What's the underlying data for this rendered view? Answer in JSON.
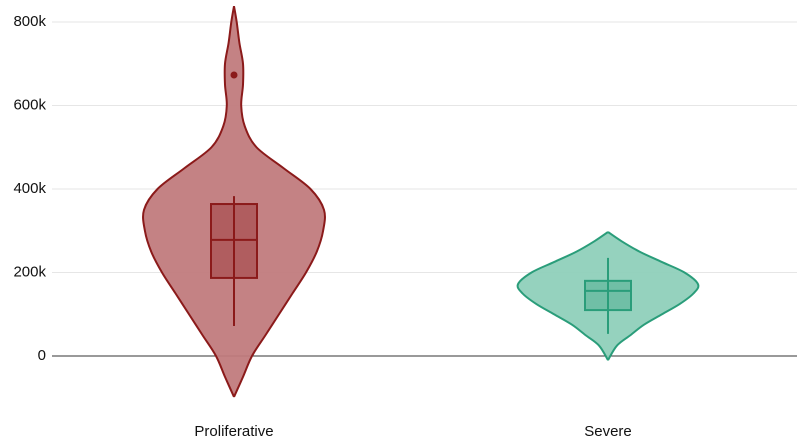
{
  "chart_data": {
    "type": "violin",
    "categories": [
      "Proliferative",
      "Severe"
    ],
    "ylim": [
      -100000,
      840000
    ],
    "yticks": [
      0,
      {
        "value": 200000,
        "label": "200k"
      },
      {
        "value": 400000,
        "label": "400k"
      },
      {
        "value": 600000,
        "label": "600k"
      },
      {
        "value": 800000,
        "label": "800k"
      }
    ],
    "grid": true,
    "series": [
      {
        "name": "Proliferative",
        "color": "#8b1a1a",
        "fill": "#c17b7d",
        "min": 72000,
        "q1": 187000,
        "median": 278000,
        "q3": 364000,
        "max": 383000,
        "outliers": [
          673000
        ],
        "violin": {
          "y": [
            -98000,
            -50000,
            0,
            50000,
            100000,
            150000,
            200000,
            250000,
            300000,
            350000,
            400000,
            450000,
            500000,
            550000,
            600000,
            650000,
            700000,
            750000,
            800000,
            838000
          ],
          "density": [
            0,
            0.1,
            0.2,
            0.35,
            0.5,
            0.65,
            0.8,
            0.92,
            0.99,
            1.0,
            0.85,
            0.55,
            0.25,
            0.12,
            0.08,
            0.1,
            0.1,
            0.06,
            0.03,
            0
          ]
        }
      },
      {
        "name": "Severe",
        "color": "#2a9d7a",
        "fill": "#8fd0bb",
        "min": 53000,
        "q1": 110000,
        "median": 156000,
        "q3": 180000,
        "max": 235000,
        "outliers": [],
        "violin": {
          "y": [
            -10000,
            25000,
            50000,
            75000,
            100000,
            125000,
            150000,
            172000,
            200000,
            225000,
            250000,
            275000,
            297000
          ],
          "density": [
            0,
            0.1,
            0.25,
            0.4,
            0.6,
            0.8,
            0.95,
            1.0,
            0.85,
            0.6,
            0.35,
            0.15,
            0
          ]
        }
      }
    ]
  }
}
